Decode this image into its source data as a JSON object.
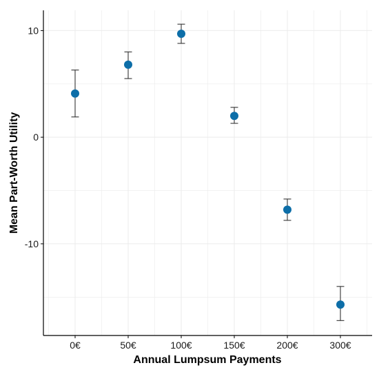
{
  "chart_data": {
    "type": "scatter",
    "title": "",
    "xlabel": "Annual Lumpsum Payments",
    "ylabel": "Mean Part-Worth Utility",
    "categories": [
      "0€",
      "50€",
      "100€",
      "150€",
      "200€",
      "300€"
    ],
    "series": [
      {
        "values": [
          4.1,
          6.8,
          9.7,
          2.0,
          -6.8,
          -15.7
        ],
        "error_low": [
          1.9,
          5.5,
          8.8,
          1.3,
          -7.8,
          -17.2
        ],
        "error_high": [
          6.3,
          8.0,
          10.6,
          2.8,
          -5.8,
          -14.0
        ]
      }
    ],
    "ylim": [
      -18.6,
      11.9
    ],
    "yticks": [
      10,
      0,
      -10
    ],
    "ytick_labels": [
      "10",
      "0",
      "-10"
    ],
    "grid": true,
    "colors": {
      "point": "#0d6ea8",
      "errorbar": "#333333",
      "grid": "#ebebeb",
      "axis": "#000000"
    }
  }
}
